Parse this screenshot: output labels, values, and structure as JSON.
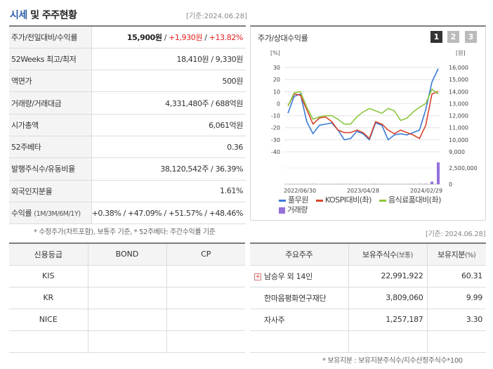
{
  "header": {
    "title_a": "시세",
    "title_b": "및 주주현황",
    "date": "[기준:2024.06.28]"
  },
  "quote": {
    "rows": [
      {
        "label": "주가/전일대비/수익률",
        "v1": "15,900원",
        "v2": "+1,930원",
        "v3": "+13.82%"
      },
      {
        "label": "52Weeks 최고/최저",
        "value": "18,410원 / 9,330원"
      },
      {
        "label": "액면가",
        "value": "500원"
      },
      {
        "label": "거래량/거래대금",
        "value": "4,331,480주 / 688억원"
      },
      {
        "label": "시가총액",
        "value": "6,061억원"
      },
      {
        "label": "52주베타",
        "value": "0.36"
      },
      {
        "label": "발행주식수/유동비율",
        "value": "38,120,542주 / 36.39%"
      },
      {
        "label": "외국인지분율",
        "value": "1.61%"
      },
      {
        "label": "수익률",
        "label_sub": "(1M/3M/6M/1Y)",
        "r1": "+0.38%",
        "r2": "+47.09%",
        "r3": "+51.57%",
        "r4": "+48.46%"
      }
    ],
    "note": "* 수정주가(차트포함), 보통주 기준, * 52주베타: 주간수익률 기준"
  },
  "chart_panel": {
    "title": "주가/상대수익률",
    "pages": [
      "1",
      "2",
      "3"
    ]
  },
  "chart_data": {
    "type": "line",
    "left_axis_unit": "[%]",
    "right_axis_unit": "[원]",
    "left_ticks": [
      "30",
      "20",
      "10",
      "0",
      "-10",
      "-20",
      "-30",
      "-40"
    ],
    "right_ticks": [
      "16,000",
      "15,000",
      "14,000",
      "13,000",
      "12,000",
      "11,000",
      "10,000",
      "9,000"
    ],
    "volume_ticks": [
      "2,500,000",
      "0"
    ],
    "x_ticks": [
      "2022/06/30",
      "2023/04/28",
      "2024/02/29"
    ],
    "ylim_left": [
      -40,
      30
    ],
    "series": [
      {
        "name": "풀무원",
        "color": "#3a7ad6",
        "axis": "left",
        "values": [
          -8,
          6,
          8,
          -15,
          -25,
          -18,
          -17,
          -16,
          -22,
          -30,
          -29,
          -23,
          -25,
          -30,
          -16,
          -18,
          -30,
          -26,
          -25,
          -26,
          -24,
          -22,
          -5,
          18,
          29
        ]
      },
      {
        "name": "KOSPI대비(좌)",
        "color": "#d9442c",
        "axis": "left",
        "values": [
          -2,
          8,
          7,
          -5,
          -17,
          -12,
          -11,
          -15,
          -22,
          -24,
          -24,
          -22,
          -24,
          -29,
          -15,
          -17,
          -22,
          -25,
          -22,
          -24,
          -26,
          -29,
          -18,
          8,
          10
        ]
      },
      {
        "name": "음식료품대비(좌)",
        "color": "#8cc63f",
        "axis": "left",
        "values": [
          -2,
          9,
          10,
          -3,
          -13,
          -11,
          -10,
          -10,
          -13,
          -17,
          -17,
          -11,
          -7,
          -4,
          -6,
          -8,
          -4,
          -6,
          -14,
          -12,
          -7,
          -3,
          0,
          12,
          8
        ]
      }
    ],
    "volume": {
      "name": "거래량",
      "color": "#9370db",
      "max": 4331480,
      "values": [
        0,
        0,
        0,
        0,
        60000,
        0,
        0,
        0,
        40000,
        0,
        30000,
        0,
        0,
        0,
        50000,
        0,
        0,
        0,
        0,
        0,
        40000,
        60000,
        80000,
        500000,
        4331480
      ]
    }
  },
  "date2": "[기준: 2024.06.28]",
  "credit": {
    "headers": [
      "신용등급",
      "BOND",
      "CP"
    ],
    "rows": [
      [
        "KIS",
        "",
        ""
      ],
      [
        "KR",
        "",
        ""
      ],
      [
        "NICE",
        "",
        ""
      ],
      [
        "",
        "",
        ""
      ]
    ]
  },
  "holders": {
    "headers": [
      "주요주주",
      "보유주식수",
      "(보통)",
      "보유지분",
      "(%)"
    ],
    "rows": [
      {
        "name": "남승우 외 14인",
        "shares": "22,991,922",
        "pct": "60.31"
      },
      {
        "name": "한마음평화연구재단",
        "shares": "3,809,060",
        "pct": "9.99"
      },
      {
        "name": "자사주",
        "shares": "1,257,187",
        "pct": "3.30"
      },
      {
        "name": "",
        "shares": "",
        "pct": ""
      }
    ],
    "note": "* 보유지분 : 보유지분주식수/지수산정주식수*100"
  }
}
